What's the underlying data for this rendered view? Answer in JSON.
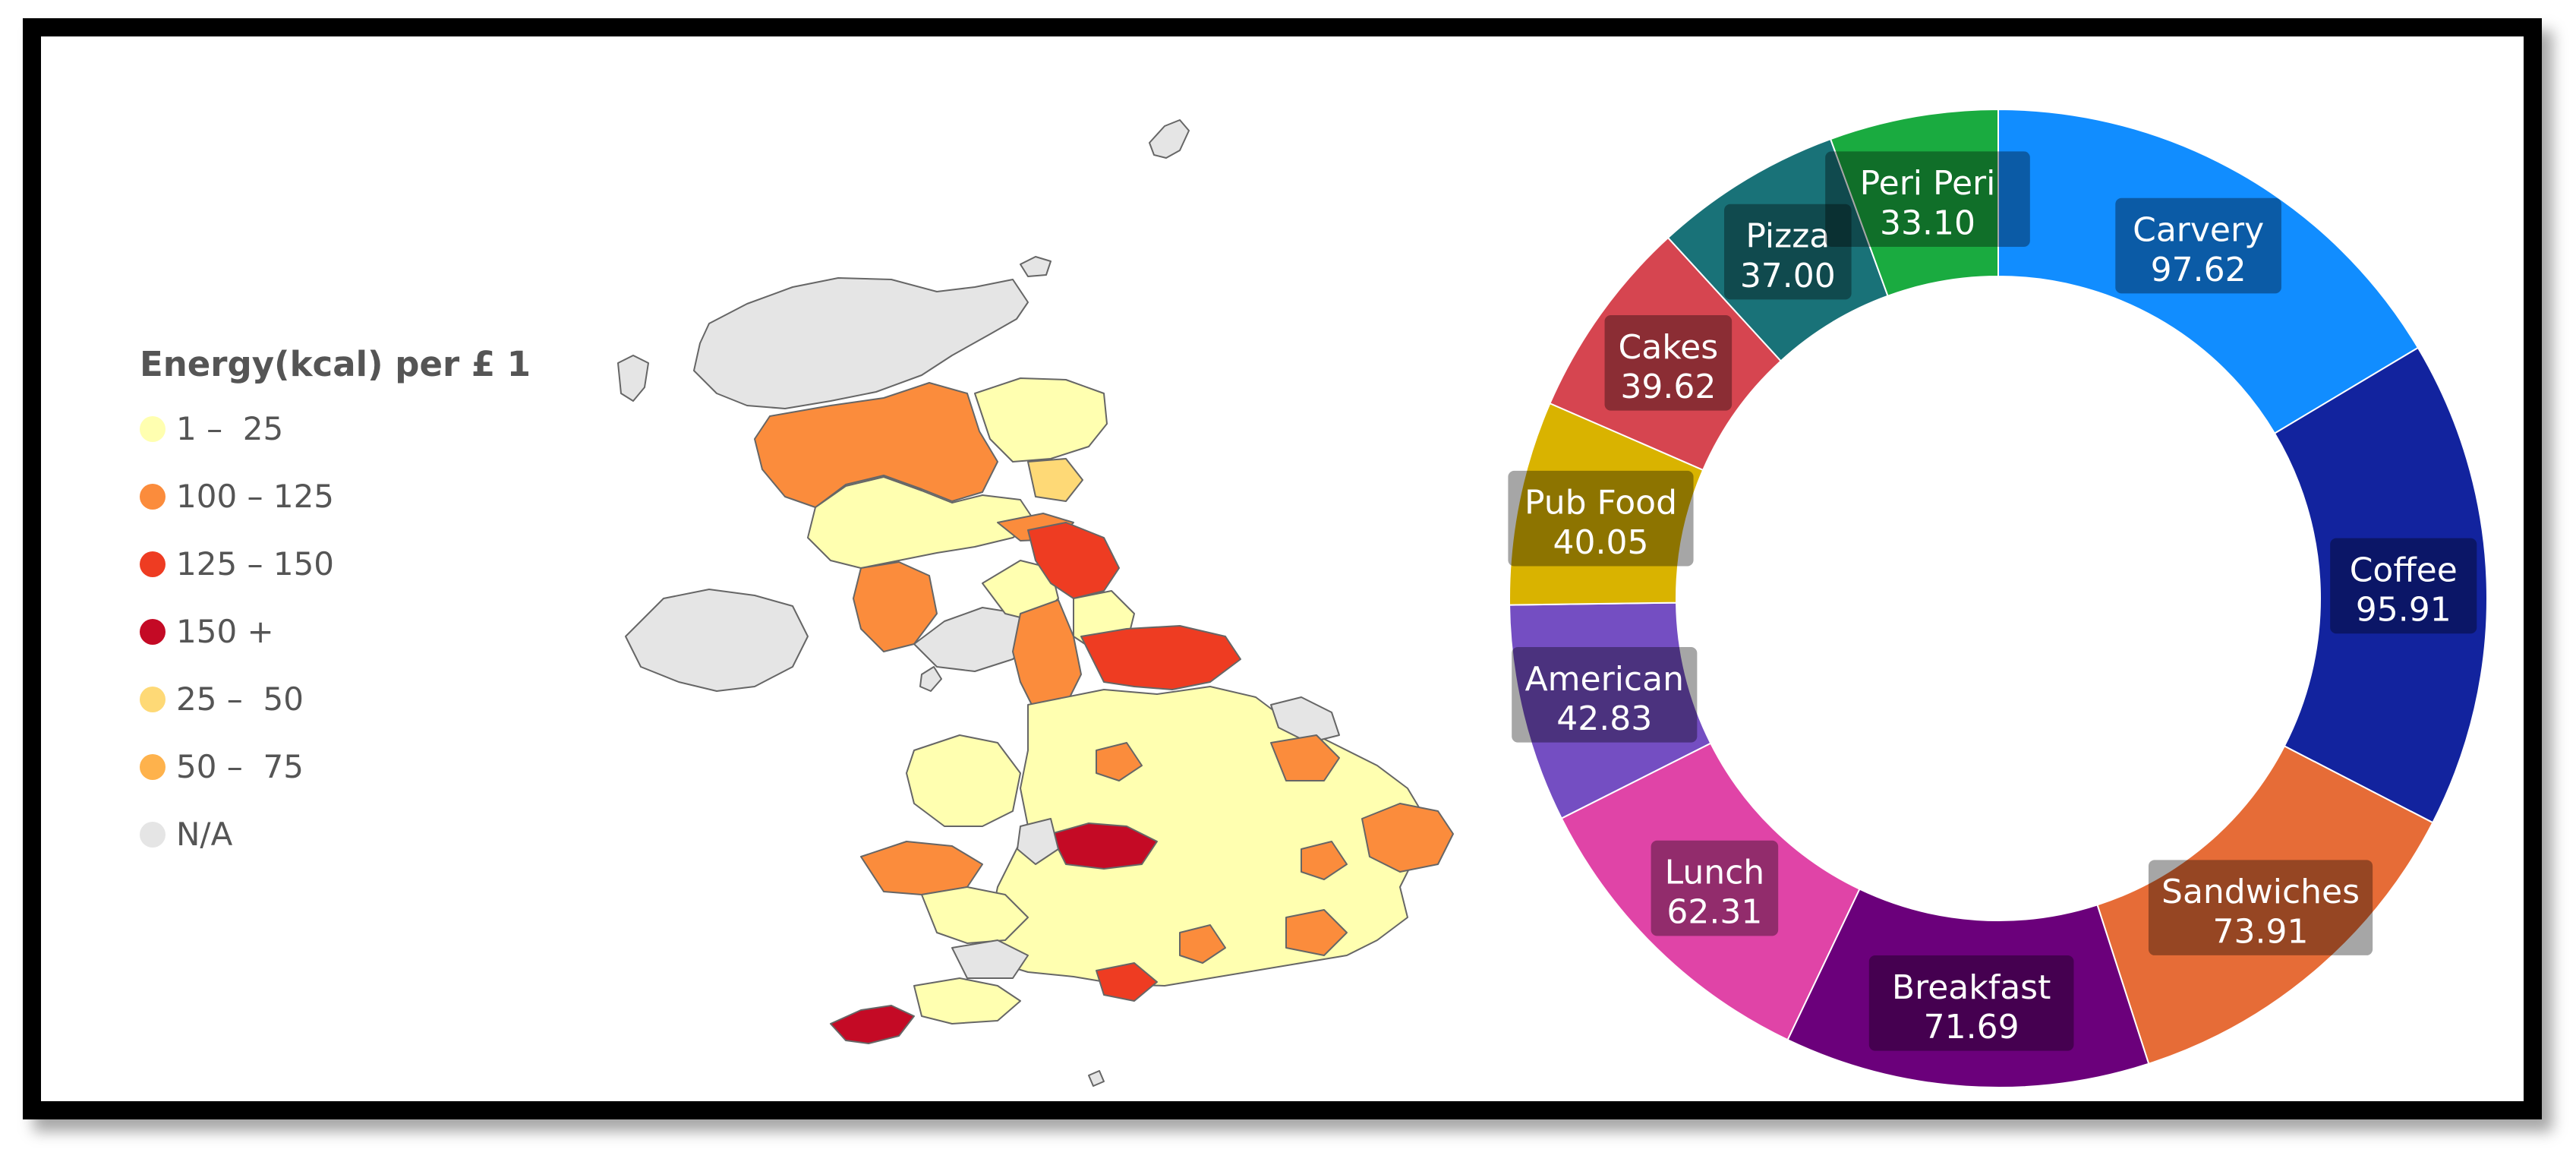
{
  "legend": {
    "title": "Energy(kcal) per £ 1",
    "items": [
      {
        "label": "1 –  25",
        "color": "#ffffb0"
      },
      {
        "label": "100 – 125",
        "color": "#fb8c3c"
      },
      {
        "label": "125 – 150",
        "color": "#ee3c22"
      },
      {
        "label": "150 +",
        "color": "#c40a25"
      },
      {
        "label": "25 –  50",
        "color": "#fed976"
      },
      {
        "label": "50 –  75",
        "color": "#feb24c"
      },
      {
        "label": "N/A",
        "color": "#e5e5e5"
      }
    ]
  },
  "chart_data": {
    "type": "pie",
    "donut": true,
    "title": "",
    "slices": [
      {
        "label": "Carvery",
        "value": 97.62,
        "display": "97.62",
        "color": "#118dff"
      },
      {
        "label": "Coffee",
        "value": 95.91,
        "display": "95.91",
        "color": "#12239e"
      },
      {
        "label": "Sandwiches",
        "value": 73.91,
        "display": "73.91",
        "color": "#e66c37"
      },
      {
        "label": "Breakfast",
        "value": 71.69,
        "display": "71.69",
        "color": "#6b007b"
      },
      {
        "label": "Lunch",
        "value": 62.31,
        "display": "62.31",
        "color": "#e044a7"
      },
      {
        "label": "American",
        "value": 42.83,
        "display": "42.83",
        "color": "#744ec2"
      },
      {
        "label": "Pub Food",
        "value": 40.05,
        "display": "40.05",
        "color": "#d9b300"
      },
      {
        "label": "Cakes",
        "value": 39.62,
        "display": "39.62",
        "color": "#d64550"
      },
      {
        "label": "Pizza",
        "value": 37.0,
        "display": "37.00",
        "color": "#197278"
      },
      {
        "label": "Peri Peri",
        "value": 33.1,
        "display": "33.10",
        "color": "#1aab40"
      }
    ]
  }
}
